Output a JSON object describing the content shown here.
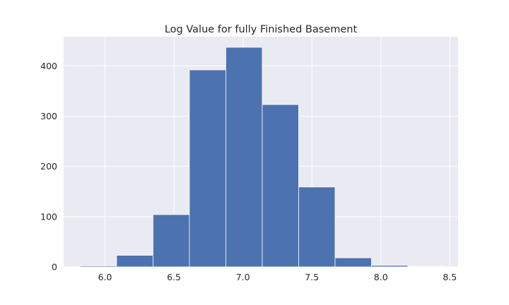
{
  "chart_data": {
    "type": "bar",
    "title": "Log Value for fully Finished Basement",
    "xlabel": "",
    "ylabel": "",
    "bin_edges": [
      5.82,
      6.084,
      6.348,
      6.612,
      6.876,
      7.14,
      7.404,
      7.668,
      7.932,
      8.196,
      8.46
    ],
    "values": [
      2,
      23,
      104,
      392,
      437,
      323,
      159,
      18,
      3,
      1
    ],
    "xlim": [
      5.7,
      8.56
    ],
    "ylim": [
      0,
      458
    ],
    "xticks": [
      6.0,
      6.5,
      7.0,
      7.5,
      8.0,
      8.5
    ],
    "yticks": [
      0,
      100,
      200,
      300,
      400
    ],
    "grid": true,
    "colors": {
      "bar": "#4c72b0",
      "bar_edge": "#ffffff",
      "plot_background": "#eaeaf2",
      "grid": "#ffffff"
    }
  }
}
